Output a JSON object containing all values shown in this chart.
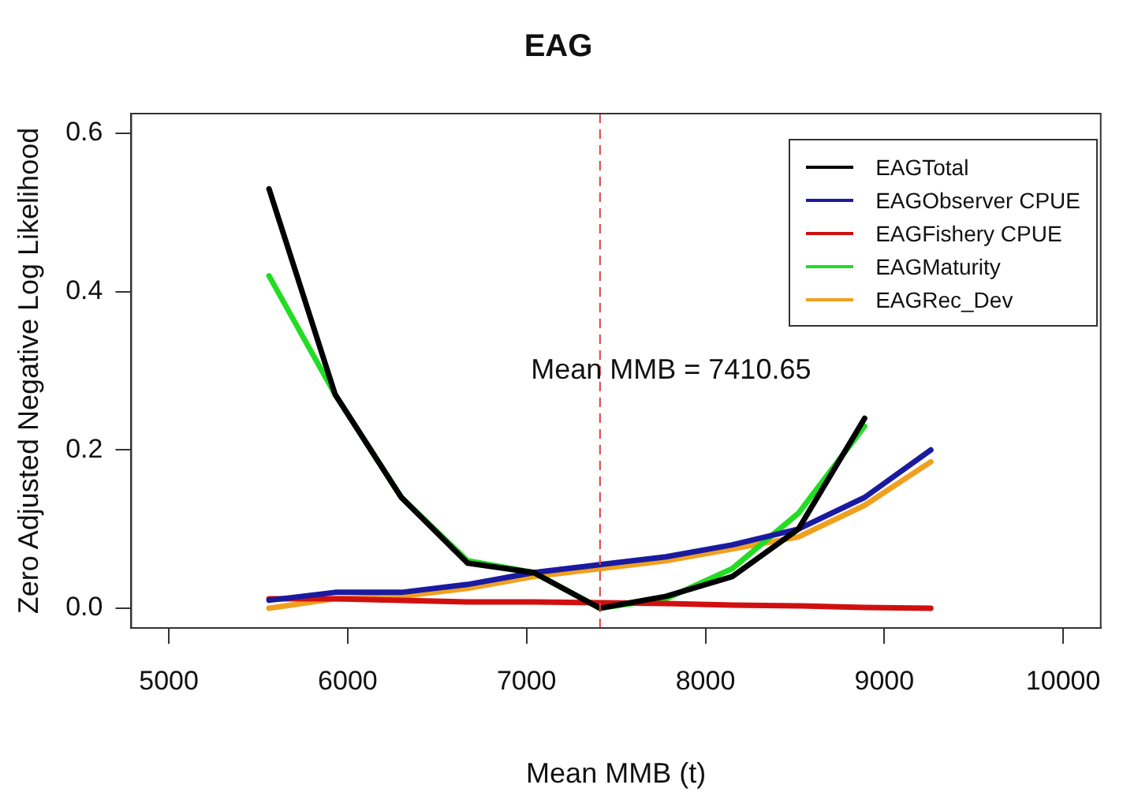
{
  "chart_data": {
    "type": "line",
    "title": "EAG",
    "xlabel": "Mean MMB (t)",
    "ylabel": "Zero Adjusted Negative Log Likelihood",
    "x": [
      5560,
      5930,
      6300,
      6670,
      7040,
      7410,
      7780,
      8150,
      8520,
      8890,
      9260
    ],
    "series": [
      {
        "name": "EAGTotal",
        "color": "#000000",
        "values": [
          0.53,
          0.27,
          0.14,
          0.057,
          0.045,
          0.0,
          0.015,
          0.04,
          0.1,
          0.24,
          null
        ]
      },
      {
        "name": "EAGObserver CPUE",
        "color": "#1a1aa0",
        "values": [
          0.01,
          0.02,
          0.02,
          0.03,
          0.045,
          0.055,
          0.065,
          0.08,
          0.1,
          0.14,
          0.2
        ]
      },
      {
        "name": "EAGFishery CPUE",
        "color": "#d01010",
        "values": [
          0.012,
          0.012,
          0.01,
          0.008,
          0.008,
          0.007,
          0.006,
          0.004,
          0.003,
          0.001,
          0.0
        ]
      },
      {
        "name": "EAGMaturity",
        "color": "#22dd22",
        "values": [
          0.42,
          0.27,
          0.14,
          0.06,
          0.045,
          0.0,
          0.012,
          0.05,
          0.12,
          0.23,
          null
        ]
      },
      {
        "name": "EAGRec_Dev",
        "color": "#f0a020",
        "values": [
          0.0,
          0.012,
          0.015,
          0.025,
          0.04,
          0.05,
          0.06,
          0.075,
          0.09,
          0.13,
          0.185
        ]
      }
    ],
    "xlim": [
      4790,
      10210
    ],
    "xticks": [
      5000,
      6000,
      7000,
      8000,
      9000,
      10000
    ],
    "ylim": [
      -0.025,
      0.625
    ],
    "yticks": [
      {
        "value": 0,
        "label": "0.0"
      },
      {
        "value": 0.2,
        "label": "0.2"
      },
      {
        "value": 0.4,
        "label": "0.4"
      },
      {
        "value": 0.6,
        "label": "0.6"
      }
    ],
    "ref_lines": [
      {
        "axis": "x",
        "value": 7410.65,
        "color": "#e04040",
        "line_style": "dashed"
      }
    ],
    "annotations": [
      {
        "text": "Mean MMB = 7410.65",
        "x": 7410.65,
        "y": 0.3
      }
    ],
    "grid": false,
    "legend": "top right",
    "marker": "none",
    "line_style": "solid"
  }
}
